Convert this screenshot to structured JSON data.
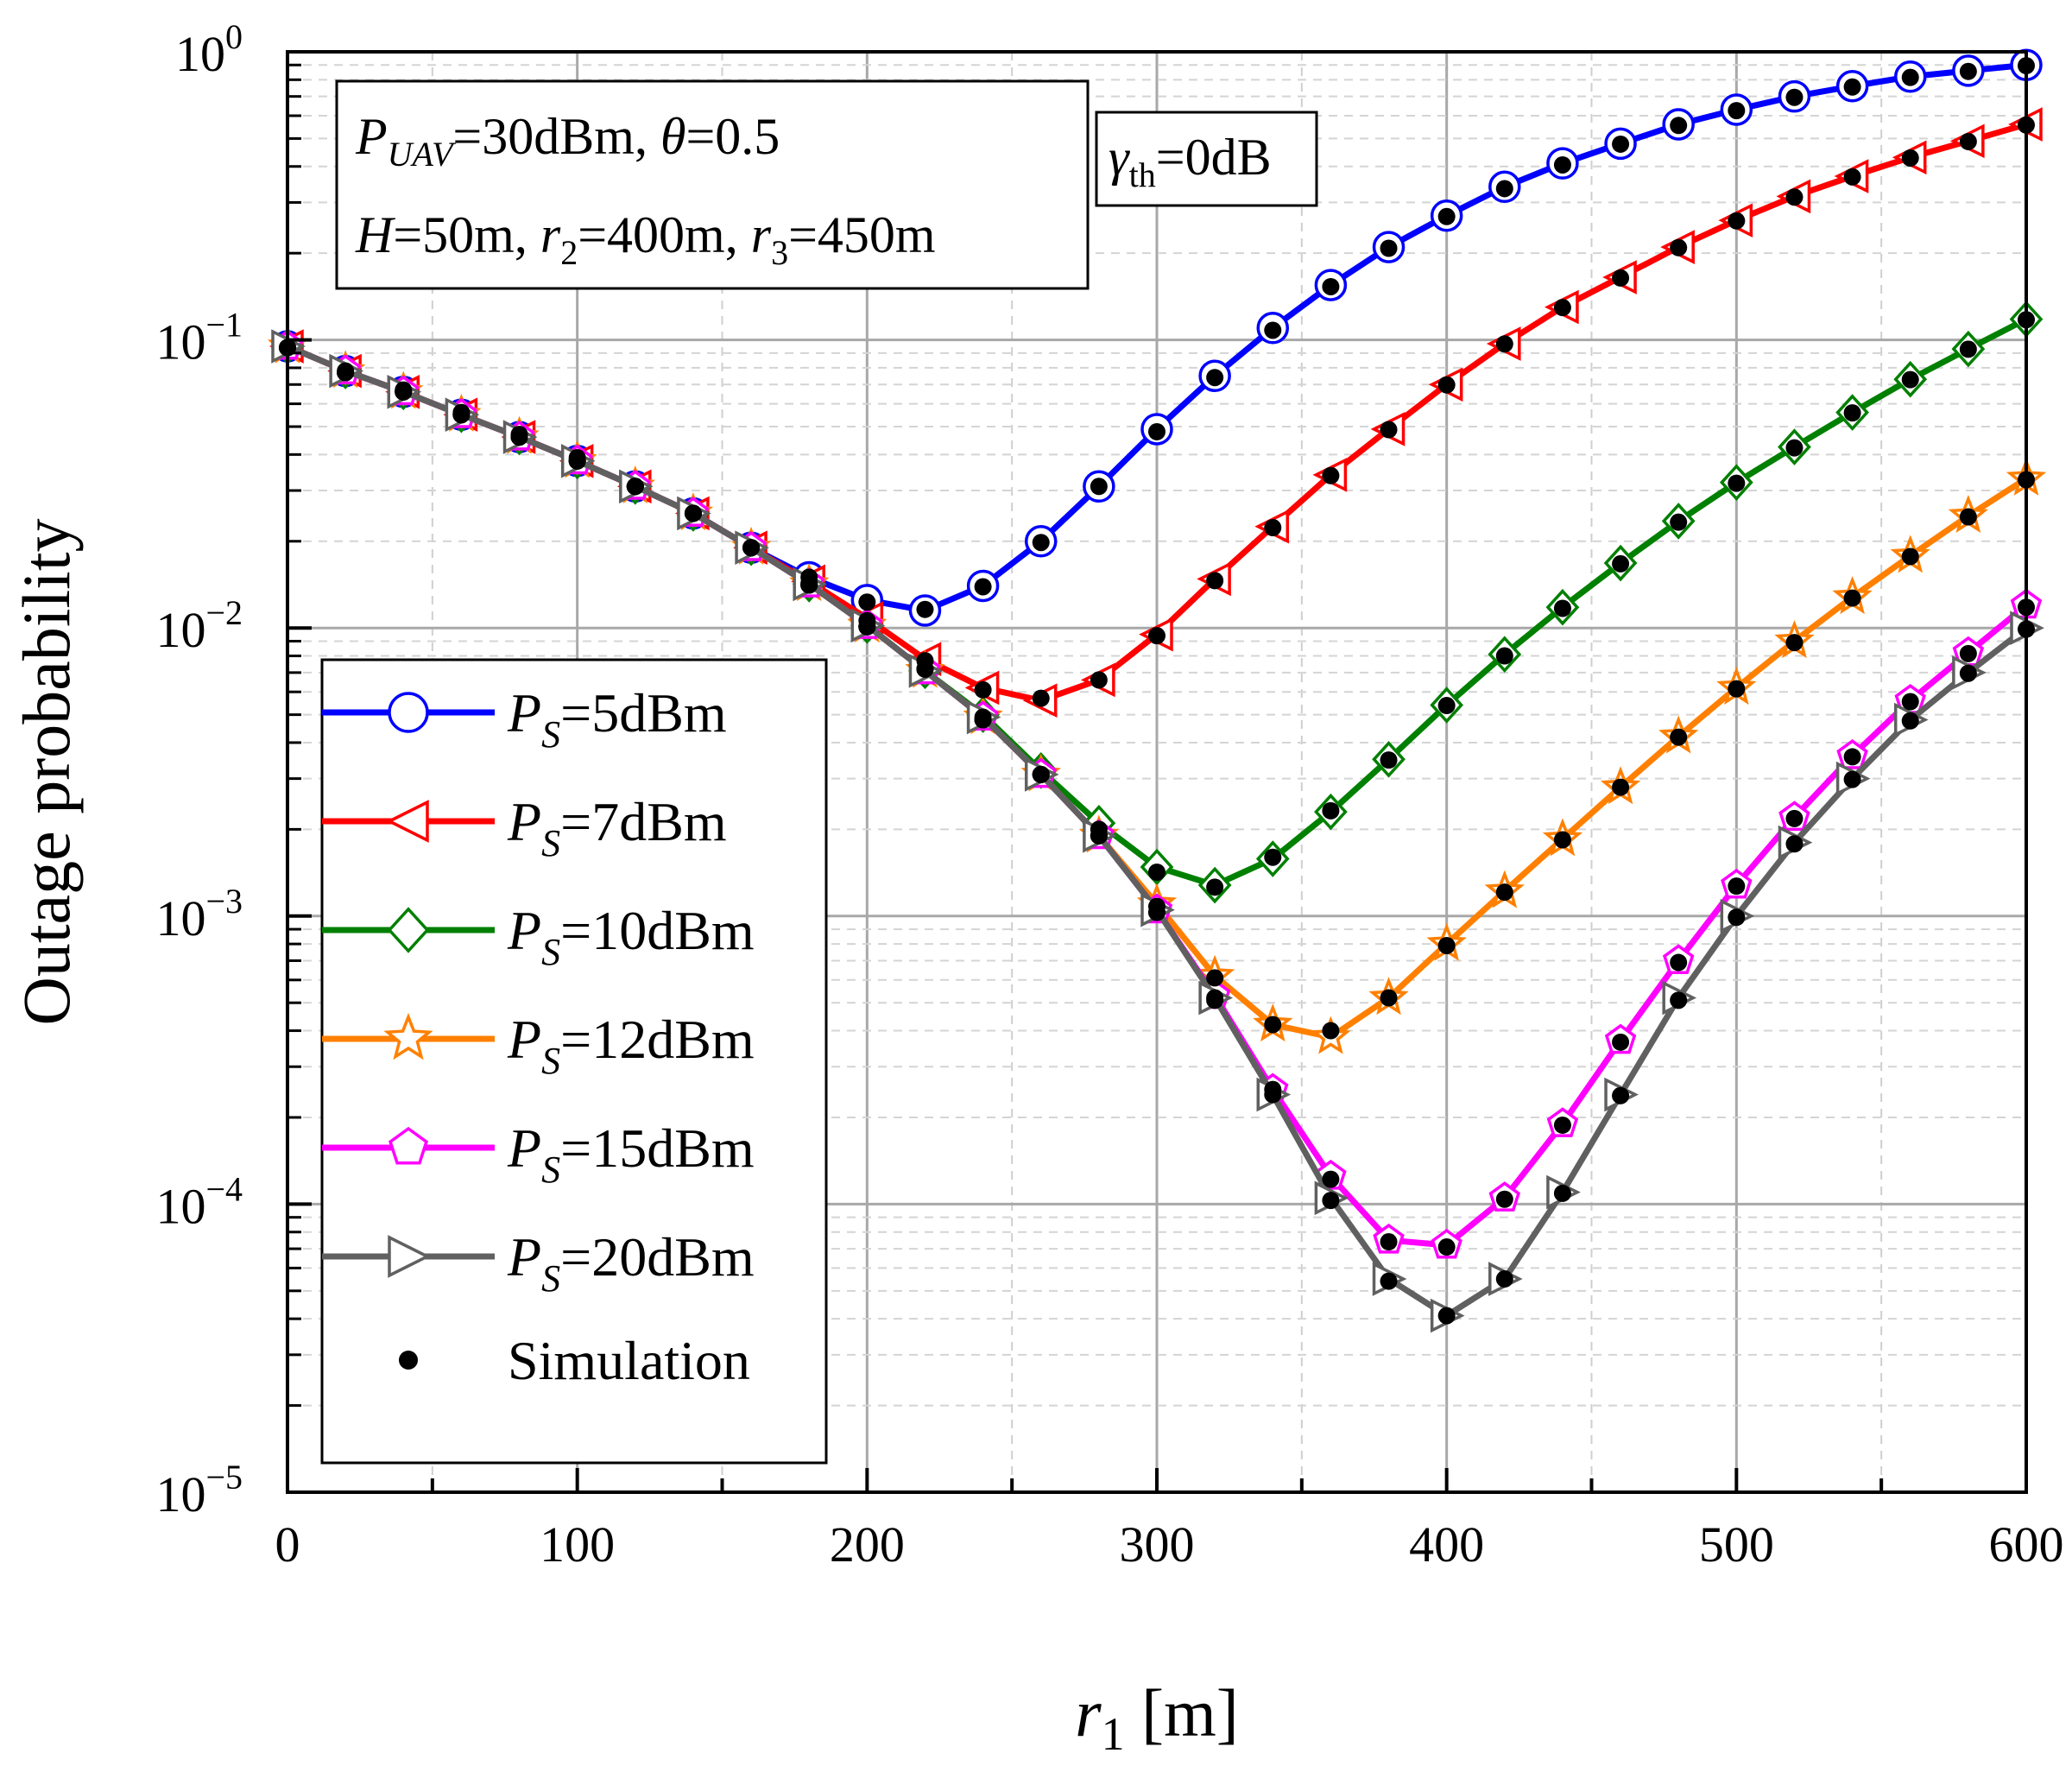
{
  "chart_data": {
    "type": "line",
    "xlabel": "r1 [m]",
    "xlabel_parts": {
      "main": "r",
      "sub": "1",
      "unit": " [m]"
    },
    "ylabel": "Outage probability",
    "xlim": [
      0,
      600
    ],
    "ylim": [
      1e-05,
      1
    ],
    "yscale": "log",
    "grid": true,
    "legend_position": "bottom-left",
    "x_ticks": [
      "0",
      "100",
      "200",
      "300",
      "400",
      "500",
      "600"
    ],
    "y_ticks": [
      {
        "value": 1,
        "base": "10",
        "exp": "0"
      },
      {
        "value": 0.1,
        "base": "10",
        "exp": "−1"
      },
      {
        "value": 0.01,
        "base": "10",
        "exp": "−2"
      },
      {
        "value": 0.001,
        "base": "10",
        "exp": "−3"
      },
      {
        "value": 0.0001,
        "base": "10",
        "exp": "−4"
      },
      {
        "value": 1e-05,
        "base": "10",
        "exp": "−5"
      }
    ],
    "annotations": {
      "params_line1": {
        "p": "P",
        "p_sub": "UAV",
        "mid": "=30dBm, ",
        "theta": "θ",
        "end": "=0.5"
      },
      "params_line2": {
        "h": "H",
        "h_val": "=50m, ",
        "r2": "r",
        "r2_sub": "2",
        "r2_val": "=400m, ",
        "r3": "r",
        "r3_sub": "3",
        "r3_val": "=450m"
      },
      "gamma": {
        "sym": "γ",
        "sub": "th",
        "val": "=0dB"
      }
    },
    "x": [
      0,
      20,
      40,
      60,
      80,
      100,
      120,
      140,
      160,
      180,
      200,
      220,
      240,
      260,
      280,
      300,
      320,
      340,
      360,
      380,
      400,
      420,
      440,
      460,
      480,
      500,
      520,
      540,
      560,
      580,
      600
    ],
    "series": [
      {
        "name": "PS=5dBm",
        "label_p": "P",
        "label_sub": "S",
        "label_val": "=5dBm",
        "color": "#0000ff",
        "marker": "circle",
        "values": [
          0.095,
          0.078,
          0.066,
          0.055,
          0.046,
          0.038,
          0.031,
          0.025,
          0.019,
          0.015,
          0.0125,
          0.0115,
          0.014,
          0.02,
          0.031,
          0.049,
          0.075,
          0.11,
          0.155,
          0.21,
          0.27,
          0.34,
          0.41,
          0.48,
          0.56,
          0.63,
          0.7,
          0.76,
          0.82,
          0.86,
          0.9
        ],
        "sim": [
          0.094,
          0.078,
          0.067,
          0.056,
          0.047,
          0.039,
          0.031,
          0.025,
          0.019,
          0.015,
          0.0123,
          0.0116,
          0.0139,
          0.0198,
          0.031,
          0.048,
          0.074,
          0.108,
          0.153,
          0.208,
          0.268,
          0.335,
          0.405,
          0.478,
          0.555,
          0.625,
          0.695,
          0.755,
          0.815,
          0.855,
          0.895
        ]
      },
      {
        "name": "PS=7dBm",
        "label_p": "P",
        "label_sub": "S",
        "label_val": "=7dBm",
        "color": "#ff0000",
        "marker": "triangle-left",
        "values": [
          0.095,
          0.078,
          0.066,
          0.055,
          0.046,
          0.038,
          0.031,
          0.025,
          0.019,
          0.0145,
          0.0108,
          0.0078,
          0.0062,
          0.0056,
          0.0066,
          0.0095,
          0.0148,
          0.0225,
          0.034,
          0.049,
          0.07,
          0.097,
          0.13,
          0.165,
          0.21,
          0.26,
          0.315,
          0.37,
          0.43,
          0.49,
          0.56
        ],
        "sim": [
          0.094,
          0.077,
          0.066,
          0.055,
          0.046,
          0.038,
          0.031,
          0.025,
          0.019,
          0.0143,
          0.0106,
          0.0077,
          0.0061,
          0.0057,
          0.0066,
          0.0094,
          0.0146,
          0.0223,
          0.0338,
          0.0488,
          0.0698,
          0.0968,
          0.1295,
          0.164,
          0.209,
          0.259,
          0.313,
          0.368,
          0.428,
          0.488,
          0.557
        ]
      },
      {
        "name": "PS=10dBm",
        "label_p": "P",
        "label_sub": "S",
        "label_val": "=10dBm",
        "color": "#008000",
        "marker": "diamond",
        "values": [
          0.095,
          0.078,
          0.066,
          0.055,
          0.046,
          0.038,
          0.031,
          0.025,
          0.019,
          0.0142,
          0.0102,
          0.0071,
          0.005,
          0.0032,
          0.0021,
          0.00148,
          0.00128,
          0.00158,
          0.0023,
          0.0035,
          0.0054,
          0.0081,
          0.0118,
          0.0168,
          0.0235,
          0.032,
          0.0425,
          0.056,
          0.073,
          0.093,
          0.118
        ],
        "sim": [
          0.094,
          0.077,
          0.066,
          0.055,
          0.046,
          0.038,
          0.031,
          0.025,
          0.019,
          0.0141,
          0.0101,
          0.0072,
          0.0049,
          0.0031,
          0.002,
          0.00142,
          0.00126,
          0.0016,
          0.00232,
          0.00348,
          0.00538,
          0.008,
          0.0117,
          0.0167,
          0.0233,
          0.0318,
          0.0422,
          0.0558,
          0.0728,
          0.0928,
          0.1175
        ]
      },
      {
        "name": "PS=12dBm",
        "label_p": "P",
        "label_sub": "S",
        "label_val": "=12dBm",
        "color": "#ff8000",
        "marker": "star",
        "values": [
          0.095,
          0.078,
          0.066,
          0.055,
          0.046,
          0.038,
          0.031,
          0.025,
          0.019,
          0.0142,
          0.0102,
          0.0071,
          0.0049,
          0.0031,
          0.0019,
          0.0011,
          0.00062,
          0.00042,
          0.00038,
          0.00052,
          0.0008,
          0.00122,
          0.00185,
          0.0028,
          0.0042,
          0.0062,
          0.009,
          0.0128,
          0.0178,
          0.0245,
          0.033
        ],
        "sim": [
          0.094,
          0.077,
          0.066,
          0.055,
          0.046,
          0.038,
          0.031,
          0.025,
          0.019,
          0.0141,
          0.0101,
          0.0072,
          0.0048,
          0.0031,
          0.0019,
          0.00108,
          0.00061,
          0.00042,
          0.0004,
          0.00052,
          0.00079,
          0.00121,
          0.00184,
          0.0028,
          0.00418,
          0.00615,
          0.0089,
          0.0127,
          0.0177,
          0.0243,
          0.0327
        ]
      },
      {
        "name": "PS=15dBm",
        "label_p": "P",
        "label_sub": "S",
        "label_val": "=15dBm",
        "color": "#ff00ff",
        "marker": "pentagon",
        "values": [
          0.095,
          0.078,
          0.066,
          0.055,
          0.046,
          0.038,
          0.031,
          0.025,
          0.019,
          0.0142,
          0.0102,
          0.0071,
          0.0049,
          0.0031,
          0.0019,
          0.00105,
          0.00053,
          0.00025,
          0.000125,
          7.5e-05,
          7.2e-05,
          0.000105,
          0.00019,
          0.00037,
          0.0007,
          0.00128,
          0.0022,
          0.0036,
          0.0056,
          0.0082,
          0.012
        ],
        "sim": [
          0.094,
          0.077,
          0.066,
          0.055,
          0.046,
          0.038,
          0.031,
          0.025,
          0.019,
          0.0141,
          0.0101,
          0.0072,
          0.0048,
          0.0031,
          0.0019,
          0.00103,
          0.00052,
          0.00025,
          0.000122,
          7.4e-05,
          7.1e-05,
          0.000104,
          0.000188,
          0.000365,
          0.00069,
          0.00127,
          0.00218,
          0.00357,
          0.00555,
          0.00815,
          0.0118
        ]
      },
      {
        "name": "PS=20dBm",
        "label_p": "P",
        "label_sub": "S",
        "label_val": "=20dBm",
        "color": "#606060",
        "marker": "triangle-right",
        "values": [
          0.095,
          0.078,
          0.066,
          0.055,
          0.046,
          0.038,
          0.031,
          0.025,
          0.019,
          0.0142,
          0.0102,
          0.0071,
          0.0049,
          0.0031,
          0.0019,
          0.00105,
          0.00052,
          0.00024,
          0.000105,
          5.5e-05,
          4.1e-05,
          5.5e-05,
          0.00011,
          0.00024,
          0.00052,
          0.001,
          0.0018,
          0.003,
          0.0048,
          0.007,
          0.01
        ],
        "sim": [
          0.094,
          0.077,
          0.066,
          0.055,
          0.046,
          0.038,
          0.031,
          0.025,
          0.019,
          0.0141,
          0.0101,
          0.0072,
          0.0048,
          0.0031,
          0.0019,
          0.00103,
          0.00051,
          0.00024,
          0.000103,
          5.4e-05,
          4.1e-05,
          5.5e-05,
          0.000109,
          0.000238,
          0.00051,
          0.00099,
          0.00178,
          0.00298,
          0.00476,
          0.00696,
          0.0099
        ]
      }
    ],
    "simulation_label": "Simulation"
  }
}
